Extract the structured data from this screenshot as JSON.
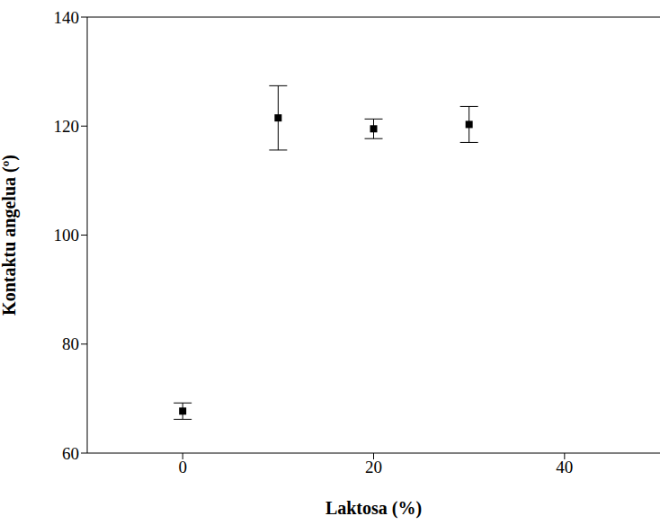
{
  "chart_data": {
    "type": "scatter",
    "x": [
      0,
      10,
      20,
      30
    ],
    "values": [
      67.7,
      121.5,
      119.5,
      120.3
    ],
    "errors": [
      1.5,
      5.9,
      1.8,
      3.3
    ],
    "xlabel": "Laktosa (%)",
    "ylabel": "Kontaktu angelua (º)",
    "xlim": [
      -10,
      50
    ],
    "ylim": [
      60,
      140
    ],
    "xticks": [
      0,
      20,
      40
    ],
    "yticks": [
      60,
      80,
      100,
      120,
      140
    ],
    "color": "#000000",
    "marker": "square"
  }
}
